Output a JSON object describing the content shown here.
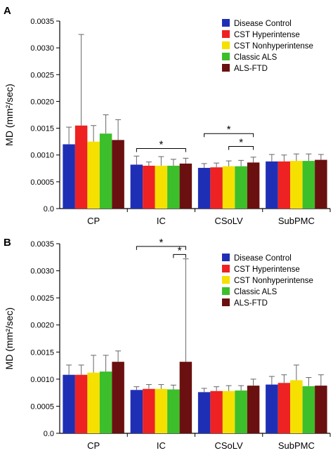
{
  "chart_data": [
    {
      "type": "bar",
      "panel_label": "A",
      "ylabel": "MD (mm²/sec)",
      "ylim": [
        0,
        0.0035
      ],
      "yticks": [
        "0.0",
        "0.0005",
        "0.0010",
        "0.0015",
        "0.0020",
        "0.0025",
        "0.0030",
        "0.0035"
      ],
      "categories": [
        "CP",
        "IC",
        "CSoLV",
        "SubPMC"
      ],
      "legend_position": "top-right",
      "series": [
        {
          "name": "Disease Control",
          "color": "#1f2fb5",
          "values": [
            0.0012,
            0.00082,
            0.00076,
            0.00088
          ],
          "errors": [
            0.00032,
            0.00016,
            8e-05,
            0.00013
          ]
        },
        {
          "name": "CST Hyperintense",
          "color": "#ee2222",
          "values": [
            0.00155,
            0.0008,
            0.00077,
            0.00088
          ],
          "errors": [
            0.0017,
            7e-05,
            8e-05,
            0.00012
          ]
        },
        {
          "name": "CST Nonhyperintense",
          "color": "#f5e000",
          "values": [
            0.00125,
            0.0008,
            0.00079,
            0.00089
          ],
          "errors": [
            0.0003,
            0.00017,
            0.0001,
            0.00013
          ]
        },
        {
          "name": "Classic ALS",
          "color": "#3cbf2a",
          "values": [
            0.0014,
            0.0008,
            0.00079,
            0.00089
          ],
          "errors": [
            0.00035,
            0.00012,
            0.00011,
            0.00013
          ]
        },
        {
          "name": "ALS-FTD",
          "color": "#6a1010",
          "values": [
            0.00128,
            0.00084,
            0.00086,
            0.00091
          ],
          "errors": [
            0.00038,
            0.0001,
            0.0001,
            0.0001
          ]
        }
      ],
      "significance": [
        {
          "category": 1,
          "from_series": 0,
          "to_series": 4,
          "y": 0.00112,
          "label": "*"
        },
        {
          "category": 2,
          "from_series": 0,
          "to_series": 4,
          "y": 0.0014,
          "label": "*"
        },
        {
          "category": 2,
          "from_series": 2,
          "to_series": 4,
          "y": 0.00116,
          "label": "*"
        }
      ]
    },
    {
      "type": "bar",
      "panel_label": "B",
      "ylabel": "MD (mm²/sec)",
      "ylim": [
        0,
        0.0035
      ],
      "yticks": [
        "0.0",
        "0.0005",
        "0.0010",
        "0.0015",
        "0.0020",
        "0.0025",
        "0.0030",
        "0.0035"
      ],
      "categories": [
        "CP",
        "IC",
        "CSoLV",
        "SubPMC"
      ],
      "legend_position": "top-right",
      "series": [
        {
          "name": "Disease Control",
          "color": "#1f2fb5",
          "values": [
            0.00108,
            0.0008,
            0.00076,
            0.0009
          ],
          "errors": [
            0.00018,
            6e-05,
            7e-05,
            0.00015
          ]
        },
        {
          "name": "CST Hyperintense",
          "color": "#ee2222",
          "values": [
            0.00108,
            0.00082,
            0.00078,
            0.00093
          ],
          "errors": [
            0.00018,
            8e-05,
            8e-05,
            0.00015
          ]
        },
        {
          "name": "CST Nonhyperintense",
          "color": "#f5e000",
          "values": [
            0.00112,
            0.00082,
            0.00078,
            0.00098
          ],
          "errors": [
            0.00032,
            8e-05,
            0.0001,
            0.00028
          ]
        },
        {
          "name": "Classic ALS",
          "color": "#3cbf2a",
          "values": [
            0.00114,
            0.00081,
            0.00079,
            0.00087
          ],
          "errors": [
            0.0003,
            8e-05,
            9e-05,
            0.00016
          ]
        },
        {
          "name": "ALS-FTD",
          "color": "#6a1010",
          "values": [
            0.00132,
            0.00132,
            0.00088,
            0.00088
          ],
          "errors": [
            0.0002,
            0.0019,
            0.00012,
            0.0002
          ]
        }
      ],
      "significance": [
        {
          "category": 1,
          "from_series": 0,
          "to_series": 4,
          "y": 0.00345,
          "label": "*"
        },
        {
          "category": 1,
          "from_series": 3,
          "to_series": 4,
          "y": 0.0033,
          "label": "*"
        }
      ]
    }
  ]
}
